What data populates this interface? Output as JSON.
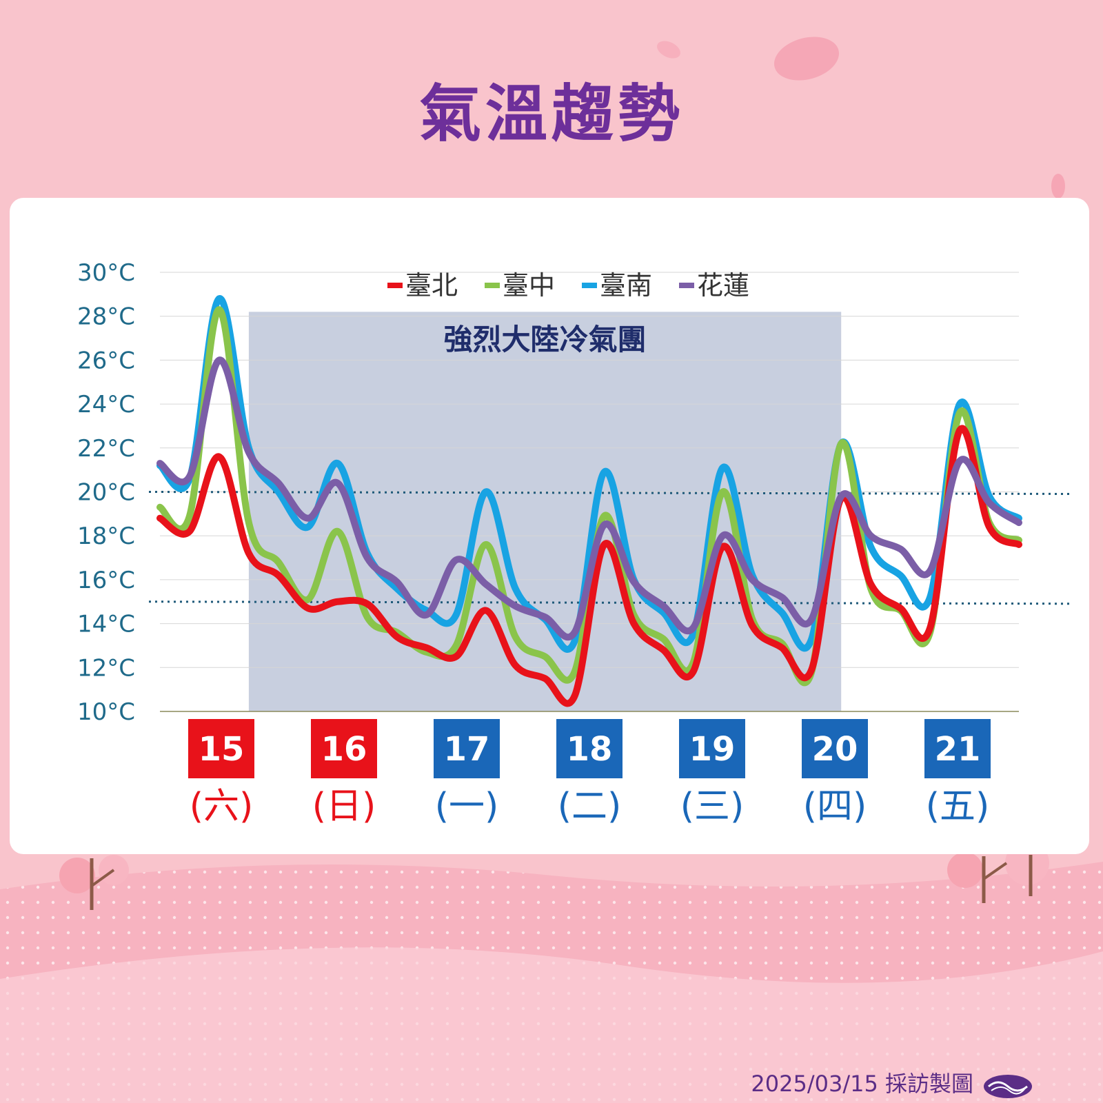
{
  "title": "氣溫趨勢",
  "footer": {
    "text": "2025/03/15 採訪製圖"
  },
  "logo": {
    "icon": "cwa-logo-icon"
  },
  "colors": {
    "background": "#f9c4cc",
    "title": "#6d2f9a",
    "axis_text": "#1f6a8a",
    "shade": "#c8cfdf",
    "shade_text": "#1f2d6b",
    "weekend": "#e8121a",
    "weekday": "#1a67b8"
  },
  "chart_data": {
    "type": "line",
    "title": "",
    "xlabel": "",
    "ylabel": "",
    "ylim": [
      10,
      30
    ],
    "y_ticks": [
      "10°C",
      "12°C",
      "14°C",
      "16°C",
      "18°C",
      "20°C",
      "22°C",
      "24°C",
      "26°C",
      "28°C",
      "30°C"
    ],
    "grid": true,
    "legend": "top-center",
    "x": [
      0,
      0.25,
      0.5,
      0.75,
      1,
      1.25,
      1.5,
      1.75,
      2,
      2.25,
      2.5,
      2.75,
      3,
      3.25,
      3.5,
      3.75,
      4,
      4.25,
      4.5,
      4.75,
      5,
      5.25,
      5.5,
      5.75,
      6,
      6.25,
      6.5
    ],
    "series": [
      {
        "name": "臺北",
        "color": "#e8121a",
        "values": [
          18.8,
          18.2,
          21.6,
          17.2,
          16.2,
          14.7,
          15.0,
          14.9,
          13.4,
          12.9,
          12.5,
          14.6,
          12.1,
          11.5,
          10.7,
          17.6,
          14.0,
          12.8,
          11.8,
          17.5,
          13.9,
          12.9,
          11.9,
          19.7,
          15.8,
          14.7,
          13.8
        ]
      },
      {
        "name": "臺中",
        "color": "#8ac44b",
        "values": [
          19.3,
          18.9,
          28.3,
          18.6,
          16.8,
          15.1,
          18.2,
          14.3,
          13.6,
          12.7,
          13.0,
          17.6,
          13.4,
          12.5,
          11.8,
          18.9,
          14.4,
          13.3,
          12.2,
          20.0,
          14.2,
          13.1,
          11.8,
          22.2,
          15.6,
          14.6,
          13.6
        ]
      },
      {
        "name": "臺南",
        "color": "#18a3e3",
        "values": [
          21.2,
          20.6,
          28.8,
          22.0,
          20.0,
          18.4,
          21.3,
          17.2,
          15.6,
          14.6,
          14.4,
          20.0,
          15.6,
          14.2,
          13.2,
          20.9,
          16.0,
          14.5,
          13.5,
          21.1,
          16.2,
          14.5,
          13.3,
          22.2,
          17.5,
          16.2,
          15.2
        ]
      },
      {
        "name": "花蓮",
        "color": "#7b5ea7",
        "values": [
          21.3,
          20.7,
          26.0,
          21.8,
          20.4,
          18.8,
          20.4,
          17.0,
          15.9,
          14.4,
          16.9,
          15.8,
          14.8,
          14.3,
          13.6,
          18.5,
          15.9,
          14.8,
          13.8,
          18.0,
          16.0,
          15.2,
          14.2,
          19.8,
          18.0,
          17.4,
          16.4
        ]
      }
    ],
    "x_end_values": {
      "臺北": 17.6,
      "臺中": 17.8,
      "臺南": 18.8,
      "花蓮": 18.6
    },
    "x_tail": [
      6.75,
      7.0,
      7.25
    ],
    "tail_values": {
      "臺北": [
        22.8,
        18.4,
        17.6
      ],
      "臺中": [
        23.6,
        18.6,
        17.8
      ],
      "臺南": [
        24.0,
        19.8,
        18.8
      ],
      "花蓮": [
        21.4,
        19.5,
        18.6
      ]
    },
    "reference_lines": [
      20,
      15
    ],
    "shaded_region": {
      "label": "強烈大陸冷氣團",
      "x_start": 0.75,
      "x_end": 5.75,
      "y_top": 28.2
    },
    "days": [
      {
        "date": "15",
        "weekday": "(六)",
        "weekend": true
      },
      {
        "date": "16",
        "weekday": "(日)",
        "weekend": true
      },
      {
        "date": "17",
        "weekday": "(一)",
        "weekend": false
      },
      {
        "date": "18",
        "weekday": "(二)",
        "weekend": false
      },
      {
        "date": "19",
        "weekday": "(三)",
        "weekend": false
      },
      {
        "date": "20",
        "weekday": "(四)",
        "weekend": false
      },
      {
        "date": "21",
        "weekday": "(五)",
        "weekend": false
      }
    ]
  }
}
